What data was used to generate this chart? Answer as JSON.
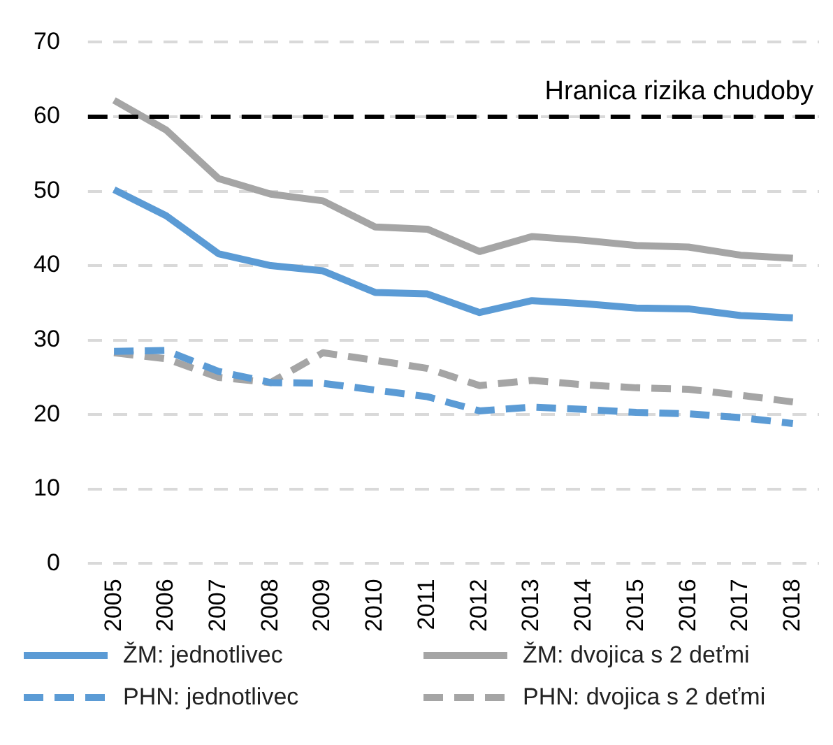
{
  "chart_data": {
    "type": "line",
    "categories": [
      "2005",
      "2006",
      "2007",
      "2008",
      "2009",
      "2010",
      "2011",
      "2012",
      "2013",
      "2014",
      "2015",
      "2016",
      "2017",
      "2018"
    ],
    "series": [
      {
        "name": "ŽM: jednotlivec",
        "color": "#5b9bd5",
        "line_style": "solid",
        "values": [
          50.2,
          46.7,
          41.6,
          40.0,
          39.3,
          36.4,
          36.2,
          33.7,
          35.3,
          34.9,
          34.3,
          34.2,
          33.3,
          33.0
        ]
      },
      {
        "name": "ŽM: dvojica s 2 deťmi",
        "color": "#a5a5a5",
        "line_style": "solid",
        "values": [
          62.2,
          58.2,
          51.7,
          49.6,
          48.7,
          45.2,
          44.9,
          41.9,
          43.9,
          43.4,
          42.7,
          42.5,
          41.4,
          41.0
        ]
      },
      {
        "name": "PHN: jednotlivec",
        "color": "#5b9bd5",
        "line_style": "dashed",
        "values": [
          28.5,
          28.6,
          25.8,
          24.3,
          24.2,
          23.3,
          22.4,
          20.5,
          21.0,
          20.7,
          20.3,
          20.1,
          19.6,
          18.8
        ]
      },
      {
        "name": "PHN: dvojica s 2 deťmi",
        "color": "#a5a5a5",
        "line_style": "dashed",
        "values": [
          28.3,
          27.5,
          25.0,
          24.3,
          28.3,
          27.3,
          26.2,
          23.9,
          24.6,
          24.0,
          23.6,
          23.4,
          22.6,
          21.7
        ]
      }
    ],
    "ylim": [
      0,
      70
    ],
    "yticks": [
      0,
      10,
      20,
      30,
      40,
      50,
      60,
      70
    ],
    "grid": "y",
    "legend": "bottom",
    "marker": "none",
    "ref_lines": [
      {
        "axis": "y",
        "value": 60,
        "label": "Hranica rizika chudoby",
        "color": "#000000",
        "line_style": "dashed"
      }
    ]
  }
}
